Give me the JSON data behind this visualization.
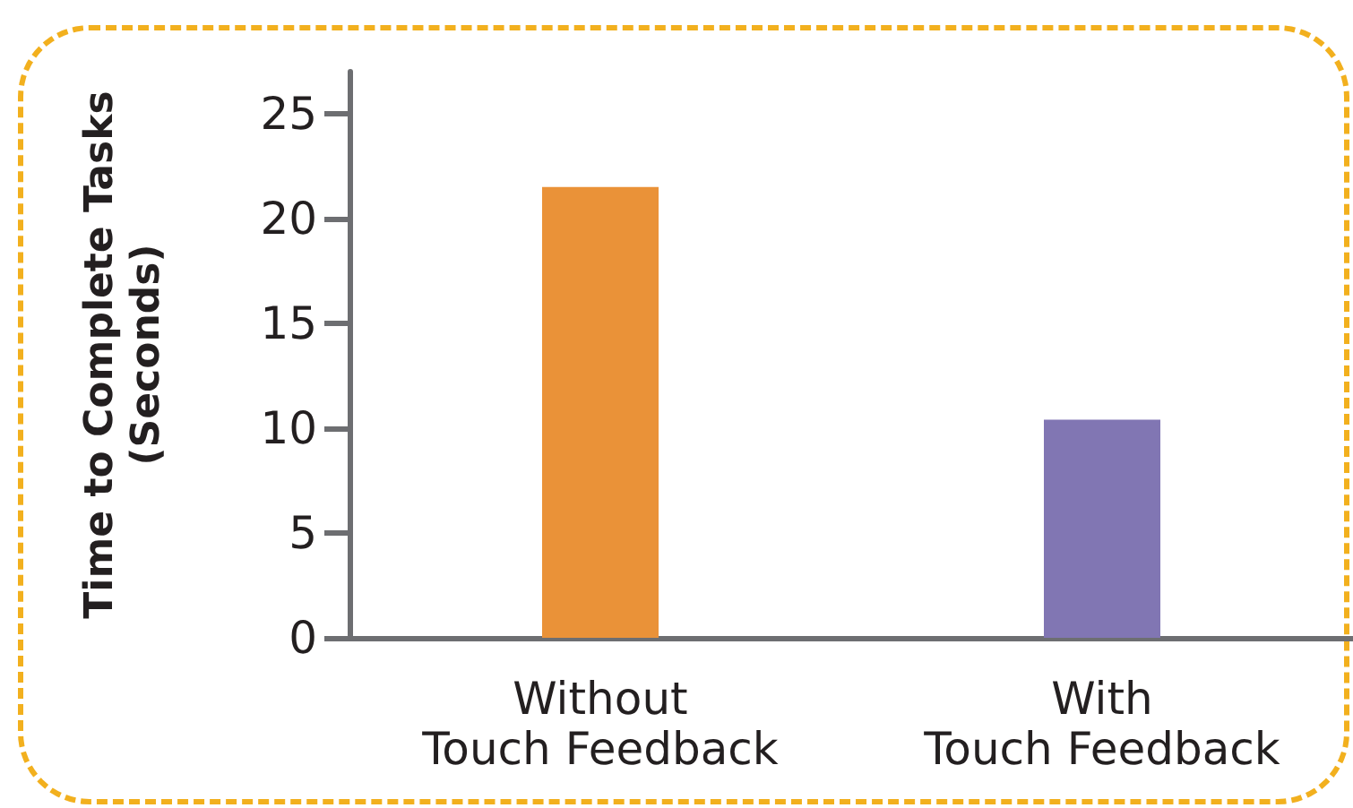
{
  "chart_data": {
    "type": "bar",
    "ylabel": "Time to Complete Tasks\n(Seconds)",
    "categories": [
      "Without\nTouch Feedback",
      "With\nTouch Feedback"
    ],
    "values": [
      21.5,
      10.4
    ],
    "colors": [
      "#ea9238",
      "#8176b3"
    ],
    "ylim": [
      0,
      27
    ],
    "yticks": [
      0,
      5,
      10,
      15,
      20,
      25
    ]
  }
}
